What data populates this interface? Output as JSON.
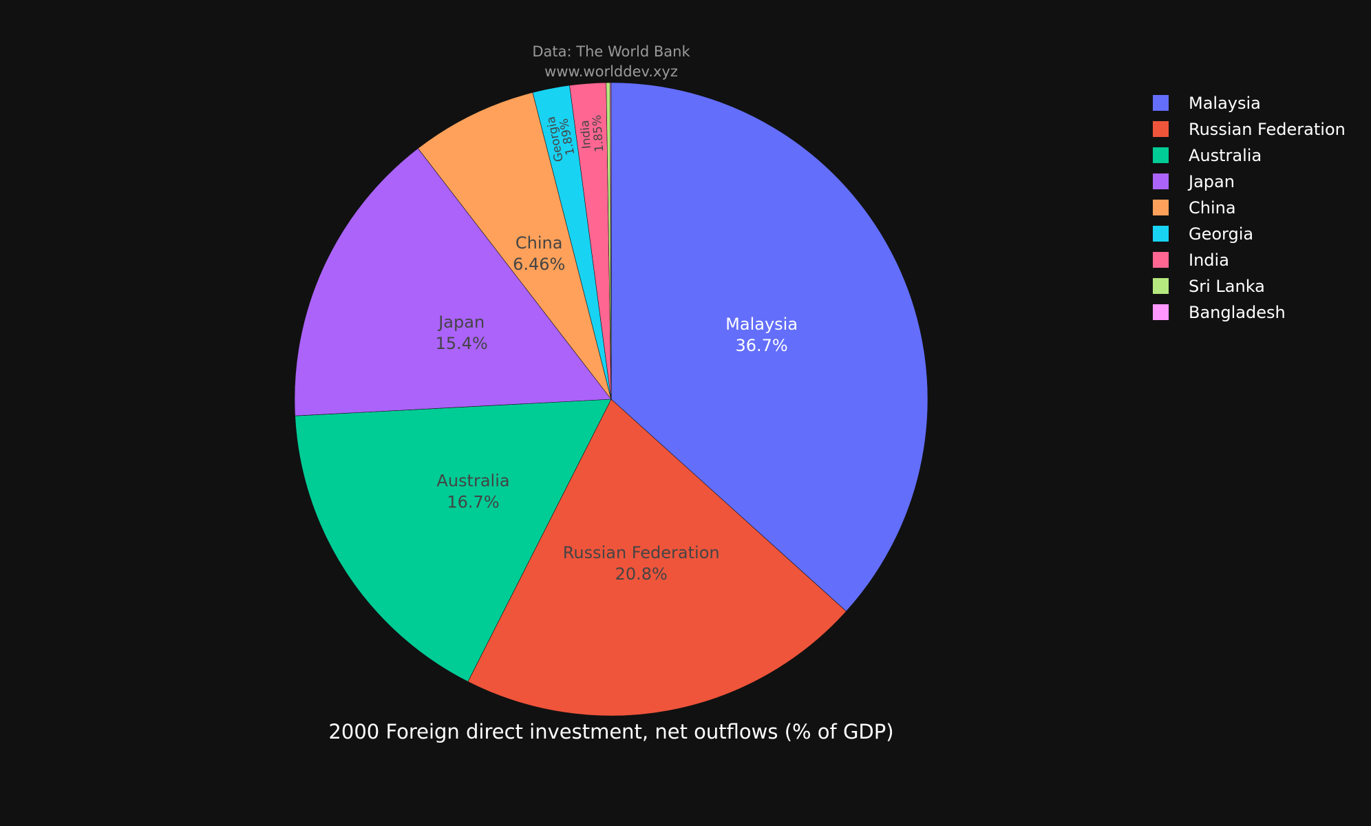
{
  "chart_data": {
    "type": "pie",
    "title": "2000 Foreign direct investment, net outflows (% of GDP)",
    "source_lines": [
      "Data: The World Bank",
      "www.worlddev.xyz"
    ],
    "legend_position": "top-right",
    "slices": [
      {
        "label": "Malaysia",
        "percent": 36.7,
        "percent_text": "36.7%",
        "color": "#636efa",
        "text_color": "#ffffff"
      },
      {
        "label": "Russian Federation",
        "percent": 20.8,
        "percent_text": "20.8%",
        "color": "#ef553b",
        "text_color": "#444444"
      },
      {
        "label": "Australia",
        "percent": 16.7,
        "percent_text": "16.7%",
        "color": "#00cc96",
        "text_color": "#444444"
      },
      {
        "label": "Japan",
        "percent": 15.4,
        "percent_text": "15.4%",
        "color": "#ab63fa",
        "text_color": "#444444"
      },
      {
        "label": "China",
        "percent": 6.46,
        "percent_text": "6.46%",
        "color": "#ffa15a",
        "text_color": "#444444"
      },
      {
        "label": "Georgia",
        "percent": 1.89,
        "percent_text": "1.89%",
        "color": "#19d3f3",
        "text_color": "#444444"
      },
      {
        "label": "India",
        "percent": 1.85,
        "percent_text": "1.85%",
        "color": "#ff6692",
        "text_color": "#444444"
      },
      {
        "label": "Sri Lanka",
        "percent": 0.2,
        "percent_text": "",
        "color": "#b6e880",
        "text_color": "#444444"
      },
      {
        "label": "Bangladesh",
        "percent": 0.05,
        "percent_text": "",
        "color": "#ff97ff",
        "text_color": "#444444"
      }
    ]
  }
}
